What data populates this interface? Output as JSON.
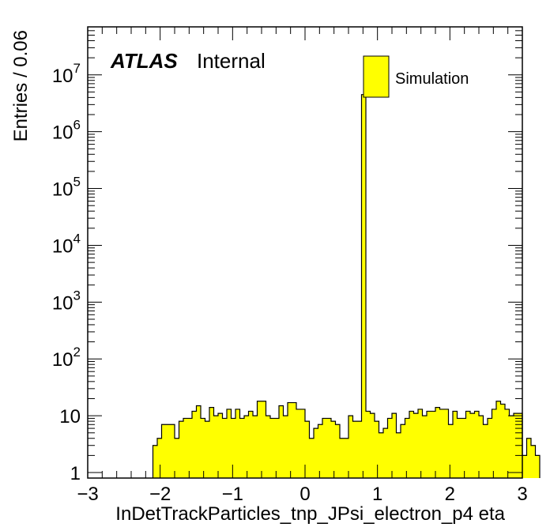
{
  "chart_data": {
    "type": "bar",
    "histogram": true,
    "xlabel": "InDetTrackParticles_tnp_JPsi_electron_p4 eta",
    "ylabel": "Entries / 0.06",
    "xlim": [
      -3,
      3
    ],
    "ylim": [
      0.8,
      70000000
    ],
    "yscale": "log",
    "bin_width": 0.06,
    "bin_edges_start": -2.1,
    "fill_color": "#ffff00",
    "x_ticks": [
      "−3",
      "−2",
      "−1",
      "0",
      "1",
      "2",
      "3"
    ],
    "y_ticks": [
      "1",
      "10",
      "10^2",
      "10^3",
      "10^4",
      "10^5",
      "10^6",
      "10^7"
    ],
    "legend": {
      "position": "top-right",
      "entries": [
        "Simulation"
      ]
    },
    "label_atlas": "ATLAS",
    "label_status": "Internal",
    "series": [
      {
        "name": "Simulation",
        "values": [
          3,
          4,
          7,
          7,
          7,
          4,
          8,
          9,
          9,
          12,
          15,
          9,
          8,
          14,
          10,
          11,
          9,
          13,
          9,
          13,
          9,
          10,
          12,
          10,
          18,
          18,
          10,
          9,
          9,
          15,
          10,
          17,
          17,
          13,
          13,
          8,
          4,
          6,
          7,
          9,
          9,
          8,
          7,
          4,
          4,
          10,
          8,
          8,
          4500000,
          12,
          11,
          8,
          5,
          6,
          9,
          11,
          5,
          7,
          9,
          12,
          11,
          13,
          10,
          12,
          12,
          14,
          13,
          13,
          7,
          12,
          9,
          9,
          12,
          11,
          12,
          10,
          7,
          9,
          13,
          18,
          16,
          13,
          10,
          11,
          11,
          2,
          4,
          3,
          2
        ]
      }
    ]
  }
}
